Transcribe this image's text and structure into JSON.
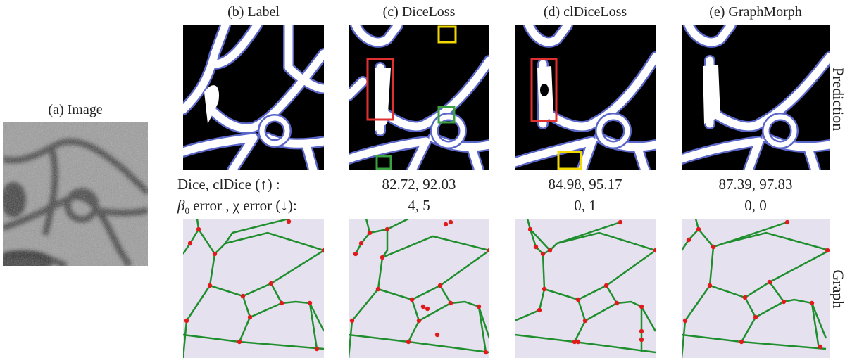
{
  "titles": {
    "image": "(a) Image",
    "label": "(b) Label",
    "diceloss": "(c) DiceLoss",
    "cldiceloss": "(d) clDiceLoss",
    "graphmorph": "(e) GraphMorph"
  },
  "side_labels": {
    "prediction": "Prediction",
    "graph": "Graph"
  },
  "metrics": {
    "row1_label": "Dice, clDice (↑) :",
    "row2_label_beta": "β",
    "row2_label_sub": "0",
    "row2_label_rest": " error , χ error (↓):",
    "diceloss_row1": "82.72, 92.03",
    "diceloss_row2": "4, 5",
    "cldiceloss_row1": "84.98, 95.17",
    "cldiceloss_row2": "0, 1",
    "graphmorph_row1": "87.39, 97.83",
    "graphmorph_row2": "0, 0"
  },
  "colors": {
    "mask_bg": "#000000",
    "vessel": "#ffffff",
    "boundary": "#5a66c8",
    "graph_bg": "#e6e1ef",
    "graph_edge": "#1f8f2e",
    "graph_node": "#e01b1b",
    "box_red": "#e03030",
    "box_green": "#3aa040",
    "box_yellow": "#f0d800"
  }
}
